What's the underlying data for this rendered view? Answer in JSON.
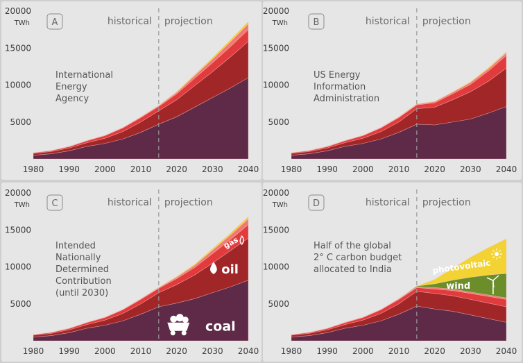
{
  "colors": {
    "page_bg": "#cfcfcf",
    "panel_bg": "#e6e6e6",
    "coal": "#5e2a47",
    "oil": "#a12628",
    "gas": "#e23b3d",
    "other": "#f07a72",
    "top": "#f0cf3a",
    "pv": "#f3d333",
    "wind": "#6b8d2a",
    "divider": "#999999"
  },
  "icons": {
    "coal": "coal-cart-icon",
    "oil": "oil-drop-icon",
    "gas": "flame-icon",
    "wind": "wind-turbine-icon",
    "pv": "sun-icon"
  },
  "chart_data": [
    {
      "type": "area",
      "panel": "A",
      "stacked": true,
      "description": [
        "International",
        "Energy",
        "Agency"
      ],
      "unit_label": "TWh",
      "ylim": [
        0,
        20000
      ],
      "xlim": [
        1980,
        2040
      ],
      "yticks": [
        5000,
        10000,
        15000,
        20000
      ],
      "xticks": [
        1980,
        1990,
        2000,
        2010,
        2020,
        2030,
        2040
      ],
      "historical_label": "historical",
      "projection_label": "projection",
      "divider_year": 2015,
      "x": [
        1980,
        1985,
        1990,
        1995,
        2000,
        2005,
        2010,
        2015,
        2020,
        2025,
        2030,
        2035,
        2040
      ],
      "series": [
        {
          "key": "coal",
          "values": [
            500,
            700,
            1100,
            1700,
            2100,
            2700,
            3600,
            4700,
            5700,
            7000,
            8300,
            9600,
            11000
          ]
        },
        {
          "key": "oil",
          "values": [
            250,
            300,
            380,
            500,
            700,
            1000,
            1400,
            1800,
            2300,
            2900,
            3500,
            4200,
            4900
          ]
        },
        {
          "key": "gas",
          "values": [
            80,
            120,
            180,
            260,
            350,
            500,
            600,
            600,
            800,
            1000,
            1200,
            1400,
            1600
          ]
        },
        {
          "key": "other",
          "values": [
            20,
            30,
            40,
            50,
            60,
            60,
            80,
            100,
            200,
            350,
            500,
            650,
            800
          ]
        },
        {
          "key": "top",
          "values": [
            0,
            0,
            0,
            0,
            0,
            0,
            20,
            50,
            100,
            150,
            200,
            250,
            300
          ]
        }
      ]
    },
    {
      "type": "area",
      "panel": "B",
      "stacked": true,
      "description": [
        "US Energy",
        "Information",
        "Administration"
      ],
      "unit_label": "TWh",
      "ylim": [
        0,
        20000
      ],
      "xlim": [
        1980,
        2040
      ],
      "yticks": [
        5000,
        10000,
        15000,
        20000
      ],
      "xticks": [
        1980,
        1990,
        2000,
        2010,
        2020,
        2030,
        2040
      ],
      "historical_label": "historical",
      "projection_label": "projection",
      "divider_year": 2015,
      "x": [
        1980,
        1985,
        1990,
        1995,
        2000,
        2005,
        2010,
        2015,
        2020,
        2025,
        2030,
        2035,
        2040
      ],
      "series": [
        {
          "key": "coal",
          "values": [
            500,
            700,
            1100,
            1700,
            2100,
            2700,
            3600,
            4700,
            4600,
            5000,
            5400,
            6200,
            7100
          ]
        },
        {
          "key": "oil",
          "values": [
            250,
            300,
            380,
            500,
            700,
            1000,
            1400,
            2100,
            2400,
            3000,
            3700,
            4300,
            5200
          ]
        },
        {
          "key": "gas",
          "values": [
            80,
            120,
            180,
            260,
            350,
            500,
            600,
            500,
            600,
            800,
            1000,
            1400,
            1700
          ]
        },
        {
          "key": "other",
          "values": [
            20,
            30,
            40,
            50,
            60,
            60,
            80,
            100,
            150,
            200,
            250,
            300,
            350
          ]
        },
        {
          "key": "top",
          "values": [
            0,
            0,
            0,
            0,
            0,
            0,
            20,
            50,
            50,
            80,
            100,
            150,
            150
          ]
        }
      ]
    },
    {
      "type": "area",
      "panel": "C",
      "stacked": true,
      "description": [
        "Intended",
        "Nationally",
        "Determined",
        "Contribution",
        "(until 2030)"
      ],
      "unit_label": "TWh",
      "ylim": [
        0,
        20000
      ],
      "xlim": [
        1980,
        2040
      ],
      "yticks": [
        5000,
        10000,
        15000,
        20000
      ],
      "xticks": [
        1980,
        1990,
        2000,
        2010,
        2020,
        2030,
        2040
      ],
      "historical_label": "historical",
      "projection_label": "projection",
      "divider_year": 2015,
      "series_labels": {
        "coal": "coal",
        "oil": "oil",
        "gas": "gas"
      },
      "x": [
        1980,
        1985,
        1990,
        1995,
        2000,
        2005,
        2010,
        2015,
        2020,
        2025,
        2030,
        2035,
        2040
      ],
      "series": [
        {
          "key": "coal",
          "values": [
            500,
            700,
            1100,
            1700,
            2100,
            2700,
            3600,
            4600,
            5100,
            5700,
            6500,
            7300,
            8200
          ]
        },
        {
          "key": "oil",
          "values": [
            250,
            300,
            380,
            500,
            700,
            1000,
            1400,
            1900,
            2500,
            3200,
            4000,
            4900,
            5700
          ]
        },
        {
          "key": "gas",
          "values": [
            80,
            120,
            180,
            260,
            350,
            500,
            600,
            600,
            800,
            1000,
            1300,
            1500,
            1800
          ]
        },
        {
          "key": "other",
          "values": [
            20,
            30,
            40,
            50,
            60,
            60,
            80,
            100,
            200,
            300,
            450,
            600,
            800
          ]
        },
        {
          "key": "top",
          "values": [
            0,
            0,
            0,
            0,
            0,
            0,
            20,
            50,
            100,
            150,
            200,
            250,
            300
          ]
        }
      ]
    },
    {
      "type": "area",
      "panel": "D",
      "stacked": true,
      "description": [
        "Half of the global",
        "2° C carbon budget",
        "allocated to India"
      ],
      "unit_label": "TWh",
      "ylim": [
        0,
        20000
      ],
      "xlim": [
        1980,
        2040
      ],
      "yticks": [
        5000,
        10000,
        15000,
        20000
      ],
      "xticks": [
        1980,
        1990,
        2000,
        2010,
        2020,
        2030,
        2040
      ],
      "historical_label": "historical",
      "projection_label": "projection",
      "divider_year": 2015,
      "series_labels": {
        "wind": "wind",
        "pv": "photovoltaic"
      },
      "x": [
        1980,
        1985,
        1990,
        1995,
        2000,
        2005,
        2010,
        2015,
        2020,
        2025,
        2030,
        2035,
        2040
      ],
      "series": [
        {
          "key": "coal",
          "values": [
            500,
            700,
            1100,
            1700,
            2100,
            2700,
            3600,
            4700,
            4300,
            4000,
            3500,
            3000,
            2500
          ]
        },
        {
          "key": "oil",
          "values": [
            250,
            300,
            380,
            500,
            700,
            1000,
            1400,
            2000,
            2100,
            2100,
            2100,
            2100,
            2100
          ]
        },
        {
          "key": "gas",
          "values": [
            80,
            120,
            180,
            260,
            350,
            500,
            600,
            500,
            600,
            700,
            800,
            900,
            1000
          ]
        },
        {
          "key": "other",
          "values": [
            20,
            30,
            40,
            50,
            60,
            60,
            80,
            100,
            200,
            200,
            200,
            200,
            200
          ]
        },
        {
          "key": "wind",
          "values": [
            0,
            0,
            0,
            0,
            0,
            0,
            20,
            100,
            500,
            1200,
            2000,
            2700,
            3300
          ]
        },
        {
          "key": "pv",
          "values": [
            0,
            0,
            0,
            0,
            0,
            0,
            0,
            20,
            600,
            1600,
            2700,
            3700,
            4700
          ]
        }
      ]
    }
  ]
}
